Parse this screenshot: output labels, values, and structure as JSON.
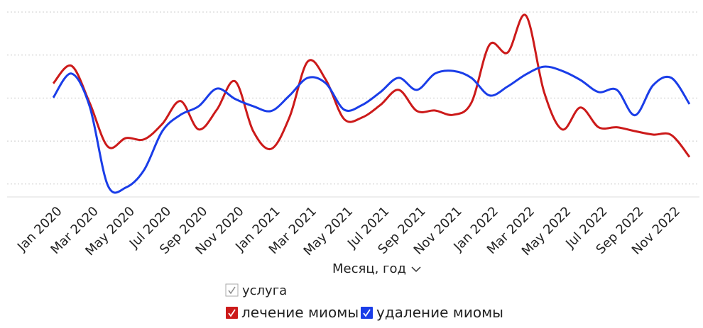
{
  "chart_data": {
    "type": "line",
    "x_label": "Месяц, год",
    "legend_title": "услуга",
    "categories": [
      "Jan 2020",
      null,
      "Mar 2020",
      null,
      "May 2020",
      null,
      "Jul 2020",
      null,
      "Sep 2020",
      null,
      "Nov 2020",
      null,
      "Jan 2021",
      null,
      "Mar 2021",
      null,
      "May 2021",
      null,
      "Jul 2021",
      null,
      "Sep 2021",
      null,
      "Nov 2021",
      null,
      "Jan 2022",
      null,
      "Mar 2022",
      null,
      "May 2022",
      null,
      "Jul 2022",
      null,
      "Sep 2022",
      null,
      "Nov 2022",
      null
    ],
    "series": [
      {
        "name": "лечение миомы",
        "color": "#cc1a1a",
        "values": [
          2.34,
          2.75,
          1.89,
          0.87,
          1.07,
          1.04,
          1.4,
          1.93,
          1.27,
          1.73,
          2.39,
          1.23,
          0.82,
          1.56,
          2.85,
          2.42,
          1.51,
          1.55,
          1.84,
          2.19,
          1.7,
          1.71,
          1.61,
          1.89,
          3.24,
          3.06,
          3.92,
          2.14,
          1.27,
          1.78,
          1.32,
          1.32,
          1.23,
          1.15,
          1.14,
          0.63
        ]
      },
      {
        "name": "удаление миомы",
        "color": "#1a3de8",
        "values": [
          2.01,
          2.57,
          1.81,
          -0.03,
          -0.08,
          0.33,
          1.23,
          1.61,
          1.81,
          2.22,
          1.98,
          1.81,
          1.7,
          2.06,
          2.47,
          2.34,
          1.73,
          1.84,
          2.14,
          2.47,
          2.19,
          2.57,
          2.63,
          2.47,
          2.06,
          2.27,
          2.55,
          2.73,
          2.63,
          2.42,
          2.14,
          2.19,
          1.6,
          2.3,
          2.47,
          1.86
        ]
      }
    ],
    "ylim": [
      -0.3,
      4.0
    ],
    "yticks": [
      0,
      1,
      2,
      3,
      4
    ],
    "grid": true
  }
}
